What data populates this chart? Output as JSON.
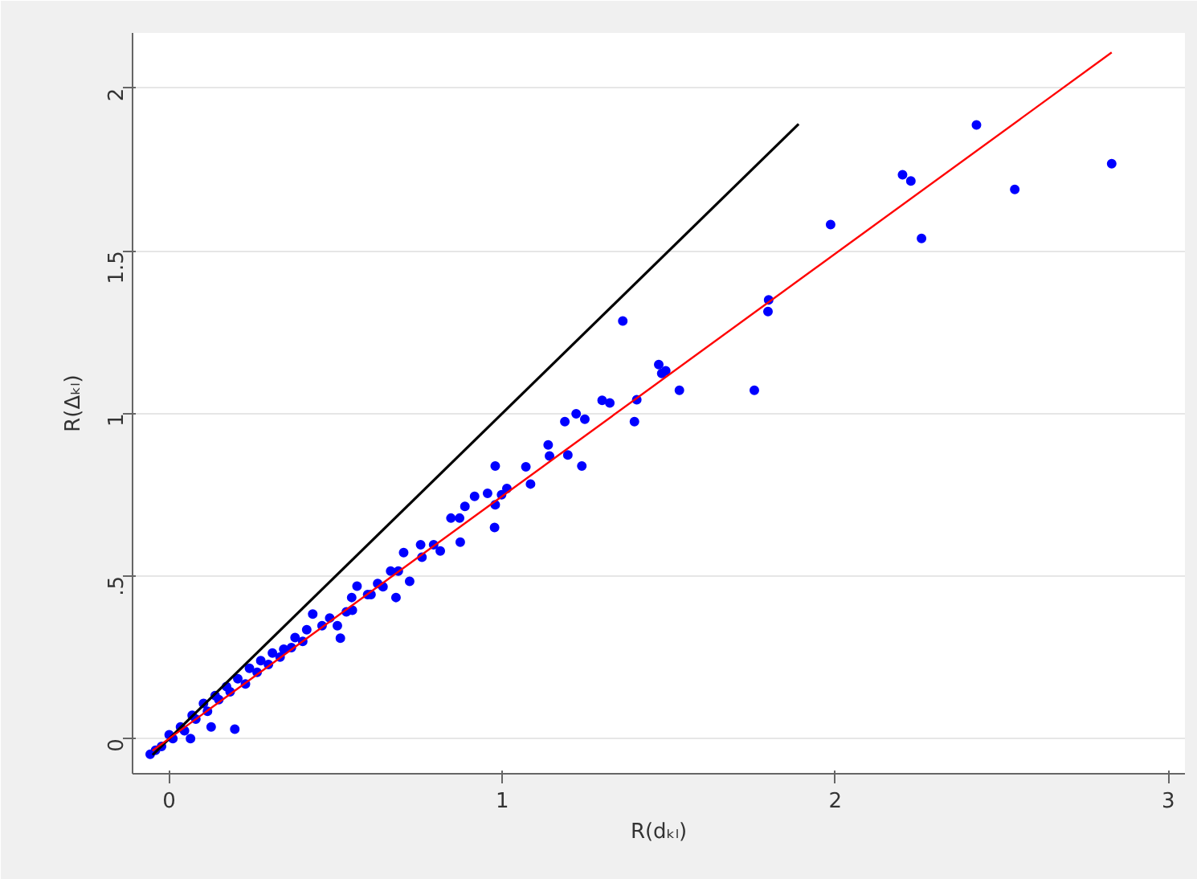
{
  "chart_data": {
    "type": "scatter",
    "xlabel": "R(dₖₗ)",
    "ylabel": "R(Δₖₗ)",
    "xlim": [
      -0.11,
      3.05
    ],
    "ylim": [
      -0.108,
      2.17
    ],
    "xticks": [
      0,
      1,
      2,
      3
    ],
    "yticks": [
      0,
      {
        "value": 0.5,
        "label": ".5"
      },
      1,
      {
        "value": 1.5,
        "label": "1.5"
      },
      2
    ],
    "grid": "y",
    "series": [
      {
        "type": "line",
        "color": "#000000",
        "marker": "none",
        "x": [
          -0.05,
          1.89
        ],
        "values": [
          -0.05,
          1.89
        ]
      },
      {
        "type": "line",
        "color": "#ff0000",
        "marker": "none",
        "x": [
          -0.05,
          2.83
        ],
        "values": [
          -0.037,
          2.11
        ]
      },
      {
        "color": "#0000ff",
        "marker": "circle",
        "x": [
          2.83,
          2.539,
          2.424,
          2.202,
          2.227,
          2.259,
          1.986,
          1.8,
          1.798,
          1.757,
          1.532,
          1.491,
          1.47,
          1.479,
          1.362,
          1.404,
          1.397,
          1.323,
          1.3,
          1.248,
          1.222,
          1.239,
          1.197,
          1.188,
          1.142,
          1.138,
          1.085,
          1.071,
          1.014,
          0.998,
          0.979,
          0.979,
          0.977,
          0.956,
          0.917,
          0.888,
          0.872,
          0.846,
          0.874,
          0.814,
          0.794,
          0.755,
          0.759,
          0.704,
          0.722,
          0.681,
          0.665,
          0.626,
          0.606,
          0.564,
          0.548,
          0.532,
          0.514,
          0.482,
          0.431,
          0.459,
          0.401,
          0.367,
          0.333,
          0.298,
          0.264,
          0.229,
          0.197,
          0.183,
          0.149,
          0.115,
          0.126,
          0.08,
          0.064,
          0.046,
          0.011,
          -0.023,
          -0.057,
          -0.041,
          0.505,
          0.55,
          0.596,
          0.642,
          0.688,
          0.413,
          0.378,
          0.344,
          0.31,
          0.275,
          0.241,
          0.206,
          0.172,
          0.138,
          0.103,
          0.069,
          0.034,
          0.0
        ],
        "values": [
          1.768,
          1.689,
          1.887,
          1.734,
          1.715,
          1.538,
          1.581,
          1.349,
          1.313,
          1.071,
          1.071,
          1.131,
          1.15,
          1.123,
          1.284,
          1.042,
          0.975,
          1.032,
          1.04,
          0.982,
          0.999,
          0.838,
          0.872,
          0.975,
          0.869,
          0.903,
          0.783,
          0.836,
          0.769,
          0.75,
          0.838,
          0.719,
          0.649,
          0.754,
          0.745,
          0.714,
          0.678,
          0.678,
          0.604,
          0.577,
          0.596,
          0.596,
          0.558,
          0.572,
          0.484,
          0.434,
          0.515,
          0.477,
          0.443,
          0.469,
          0.434,
          0.39,
          0.309,
          0.371,
          0.383,
          0.347,
          0.299,
          0.28,
          0.251,
          0.228,
          0.204,
          0.168,
          0.029,
          0.144,
          0.12,
          0.084,
          0.036,
          0.06,
          0.0,
          0.024,
          0.0,
          -0.024,
          -0.048,
          -0.036,
          0.347,
          0.395,
          0.443,
          0.467,
          0.515,
          0.335,
          0.311,
          0.275,
          0.263,
          0.24,
          0.216,
          0.184,
          0.16,
          0.132,
          0.108,
          0.072,
          0.036,
          0.012
        ]
      }
    ]
  }
}
